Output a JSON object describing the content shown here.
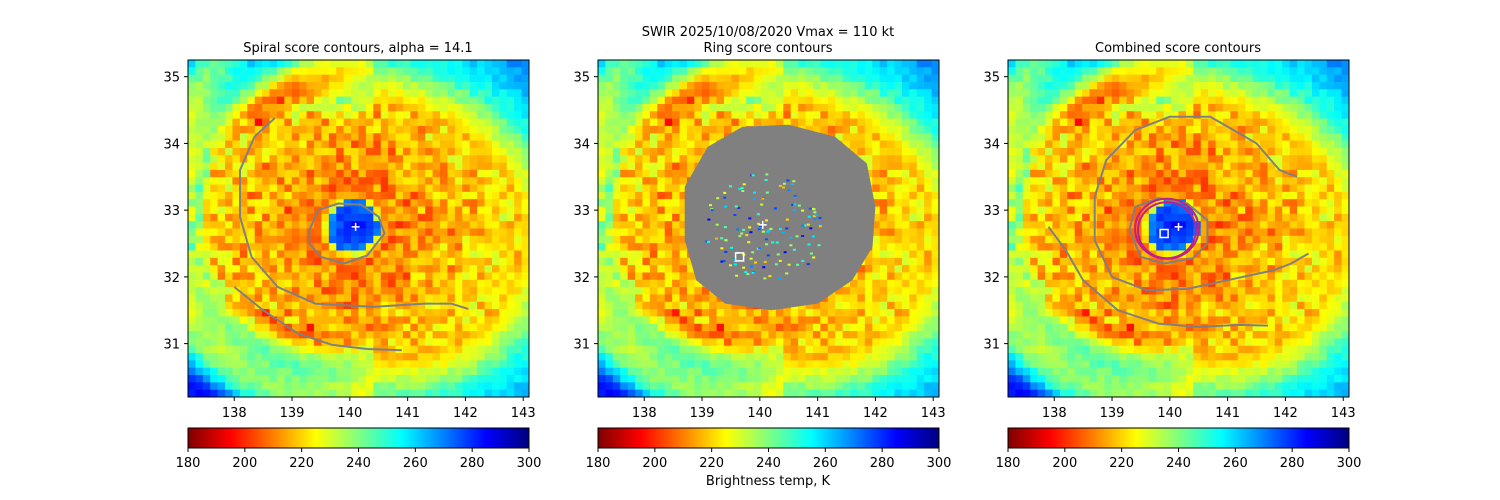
{
  "figure": {
    "suptitle_line1": "SWIR  2025/10/08/2020    Vmax = 110 kt",
    "colorbar_label": "Brightness temp, K"
  },
  "colormap": {
    "name": "jet_r",
    "stops": [
      "#7f0000",
      "#ff0000",
      "#ff7f00",
      "#ffff00",
      "#80ff80",
      "#00ffff",
      "#0080ff",
      "#0000ff",
      "#00007f"
    ]
  },
  "contour_color": "#808080",
  "ring_color": "#c0208a",
  "chart_data": [
    {
      "type": "heatmap",
      "title": "Spiral score contours, alpha = 14.1",
      "x_ticks": [
        "138",
        "139",
        "140",
        "141",
        "142",
        "143"
      ],
      "y_ticks": [
        "31",
        "32",
        "33",
        "34",
        "35"
      ],
      "xlim": [
        137.2,
        143.1
      ],
      "ylim": [
        30.2,
        35.25
      ],
      "colorbar": {
        "range": [
          180,
          300
        ],
        "ticks": [
          "180",
          "200",
          "220",
          "240",
          "260",
          "280",
          "300"
        ]
      },
      "center_marker": {
        "type": "plus",
        "x": 140.1,
        "y": 32.75
      },
      "contours": [
        [
          [
            138.7,
            34.38
          ],
          [
            138.35,
            34.1
          ],
          [
            138.1,
            33.6
          ],
          [
            138.1,
            32.9
          ],
          [
            138.3,
            32.3
          ],
          [
            138.75,
            31.85
          ],
          [
            139.4,
            31.6
          ],
          [
            140.4,
            31.55
          ],
          [
            141.3,
            31.6
          ],
          [
            141.75,
            31.6
          ],
          [
            142.05,
            31.52
          ]
        ],
        [
          [
            138.0,
            31.85
          ],
          [
            138.5,
            31.5
          ],
          [
            139.1,
            31.15
          ],
          [
            139.7,
            30.98
          ],
          [
            140.3,
            30.92
          ],
          [
            140.9,
            30.9
          ]
        ],
        [
          [
            139.3,
            32.7
          ],
          [
            139.45,
            33.0
          ],
          [
            139.8,
            33.1
          ],
          [
            140.2,
            33.08
          ],
          [
            140.5,
            32.9
          ],
          [
            140.6,
            32.65
          ],
          [
            140.3,
            32.32
          ],
          [
            139.9,
            32.2
          ],
          [
            139.5,
            32.3
          ],
          [
            139.3,
            32.5
          ],
          [
            139.3,
            32.7
          ]
        ]
      ]
    },
    {
      "type": "heatmap",
      "title": "Ring score contours",
      "x_ticks": [
        "138",
        "139",
        "140",
        "141",
        "142",
        "143"
      ],
      "y_ticks": [
        "31",
        "32",
        "33",
        "34",
        "35"
      ],
      "xlim": [
        137.2,
        143.1
      ],
      "ylim": [
        30.2,
        35.25
      ],
      "colorbar": {
        "range": [
          180,
          300
        ],
        "ticks": [
          "180",
          "200",
          "220",
          "240",
          "260",
          "280",
          "300"
        ]
      },
      "square_marker": {
        "x": 139.65,
        "y": 32.3
      },
      "center_marker": {
        "type": "plus",
        "x": 140.05,
        "y": 32.78
      },
      "filled_region": [
        [
          138.7,
          33.35
        ],
        [
          139.1,
          33.95
        ],
        [
          139.7,
          34.25
        ],
        [
          140.5,
          34.28
        ],
        [
          141.3,
          34.1
        ],
        [
          141.85,
          33.7
        ],
        [
          142.0,
          33.05
        ],
        [
          141.95,
          32.45
        ],
        [
          141.6,
          31.95
        ],
        [
          141.0,
          31.6
        ],
        [
          140.2,
          31.5
        ],
        [
          139.4,
          31.6
        ],
        [
          138.9,
          31.95
        ],
        [
          138.7,
          32.55
        ]
      ]
    },
    {
      "type": "heatmap",
      "title": "Combined score contours",
      "x_ticks": [
        "138",
        "139",
        "140",
        "141",
        "142",
        "143"
      ],
      "y_ticks": [
        "31",
        "32",
        "33",
        "34",
        "35"
      ],
      "xlim": [
        137.2,
        143.1
      ],
      "ylim": [
        30.2,
        35.25
      ],
      "colorbar": {
        "range": [
          180,
          300
        ],
        "ticks": [
          "180",
          "200",
          "220",
          "240",
          "260",
          "280",
          "300"
        ]
      },
      "square_marker": {
        "x": 139.9,
        "y": 32.65
      },
      "center_marker": {
        "type": "plus",
        "x": 140.15,
        "y": 32.75
      },
      "rings": [
        {
          "cx": 139.95,
          "cy": 32.72,
          "rx": 0.55,
          "ry": 0.45
        },
        {
          "cx": 139.95,
          "cy": 32.7,
          "rx": 0.5,
          "ry": 0.42
        }
      ],
      "contours": [
        [
          [
            142.2,
            33.5
          ],
          [
            141.9,
            33.6
          ],
          [
            141.5,
            34.0
          ],
          [
            140.7,
            34.4
          ],
          [
            140.0,
            34.4
          ],
          [
            139.4,
            34.2
          ],
          [
            138.9,
            33.75
          ],
          [
            138.7,
            33.2
          ],
          [
            138.7,
            32.55
          ],
          [
            139.0,
            32.0
          ],
          [
            139.6,
            31.8
          ],
          [
            140.3,
            31.82
          ],
          [
            141.0,
            31.95
          ],
          [
            141.8,
            32.1
          ],
          [
            142.1,
            32.2
          ],
          [
            142.4,
            32.35
          ]
        ],
        [
          [
            137.9,
            32.75
          ],
          [
            138.2,
            32.4
          ],
          [
            138.5,
            31.95
          ],
          [
            139.1,
            31.5
          ],
          [
            139.8,
            31.3
          ],
          [
            140.5,
            31.25
          ],
          [
            141.2,
            31.28
          ],
          [
            141.7,
            31.27
          ]
        ],
        [
          [
            139.3,
            32.7
          ],
          [
            139.4,
            33.05
          ],
          [
            139.8,
            33.18
          ],
          [
            140.3,
            33.1
          ],
          [
            140.65,
            32.85
          ],
          [
            140.65,
            32.5
          ],
          [
            140.4,
            32.28
          ],
          [
            139.9,
            32.2
          ],
          [
            139.5,
            32.3
          ],
          [
            139.3,
            32.7
          ]
        ]
      ]
    }
  ]
}
